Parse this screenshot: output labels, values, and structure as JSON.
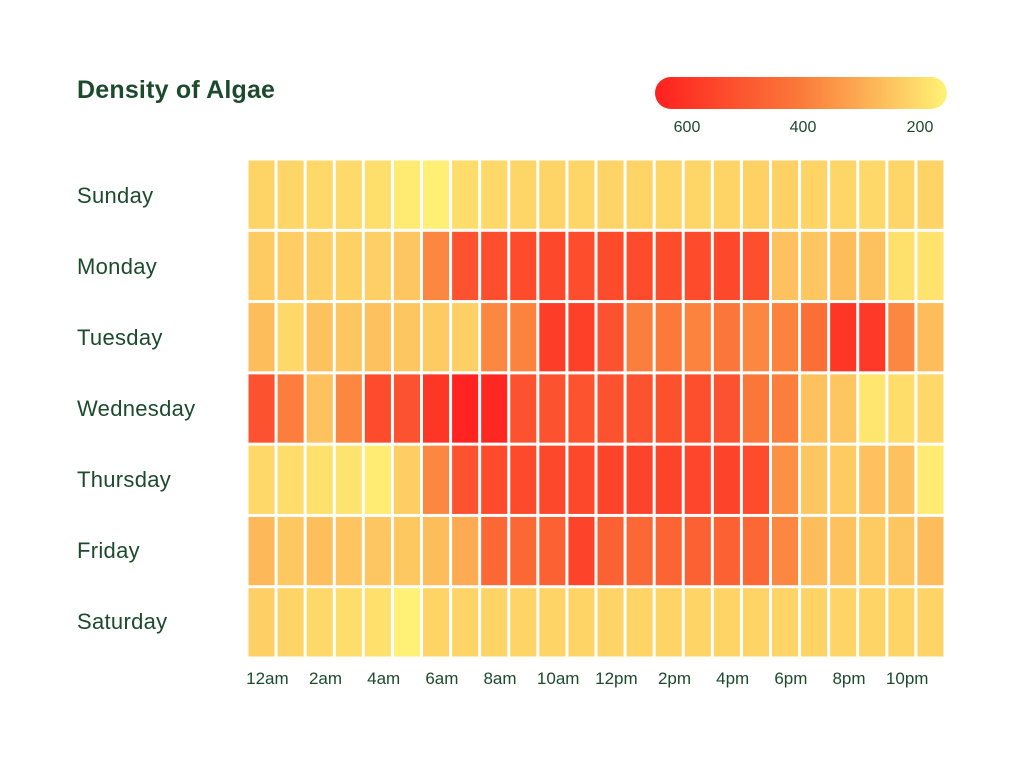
{
  "chart_data": {
    "type": "heatmap",
    "title": "Density of Algae",
    "rows": [
      "Sunday",
      "Monday",
      "Tuesday",
      "Wednesday",
      "Thursday",
      "Friday",
      "Saturday"
    ],
    "columns": [
      "12am",
      "1am",
      "2am",
      "3am",
      "4am",
      "5am",
      "6am",
      "7am",
      "8am",
      "9am",
      "10am",
      "11am",
      "12pm",
      "1pm",
      "2pm",
      "3pm",
      "4pm",
      "5pm",
      "6pm",
      "7pm",
      "8pm",
      "9pm",
      "10pm",
      "11pm"
    ],
    "x_tick_labels": [
      "12am",
      "2am",
      "4am",
      "6am",
      "8am",
      "10am",
      "12pm",
      "2pm",
      "4pm",
      "6pm",
      "8pm",
      "10pm"
    ],
    "values": [
      [
        250,
        245,
        240,
        235,
        225,
        200,
        190,
        230,
        240,
        245,
        250,
        245,
        250,
        250,
        245,
        245,
        250,
        255,
        255,
        250,
        245,
        240,
        245,
        250
      ],
      [
        270,
        265,
        260,
        255,
        260,
        280,
        420,
        560,
        570,
        580,
        590,
        575,
        580,
        580,
        575,
        580,
        590,
        570,
        290,
        280,
        300,
        290,
        220,
        215
      ],
      [
        300,
        240,
        290,
        280,
        290,
        280,
        270,
        260,
        420,
        430,
        620,
        610,
        560,
        440,
        450,
        430,
        460,
        420,
        430,
        480,
        640,
        630,
        420,
        300
      ],
      [
        560,
        440,
        290,
        420,
        580,
        560,
        640,
        690,
        680,
        560,
        560,
        555,
        560,
        560,
        565,
        570,
        560,
        460,
        440,
        290,
        280,
        210,
        230,
        240
      ],
      [
        240,
        230,
        220,
        215,
        195,
        265,
        420,
        560,
        580,
        585,
        590,
        590,
        600,
        600,
        600,
        595,
        600,
        580,
        400,
        280,
        270,
        290,
        290,
        200
      ],
      [
        310,
        275,
        295,
        285,
        280,
        275,
        300,
        340,
        500,
        500,
        520,
        600,
        520,
        500,
        510,
        520,
        520,
        500,
        420,
        300,
        290,
        270,
        280,
        300
      ],
      [
        260,
        250,
        240,
        230,
        220,
        185,
        250,
        250,
        250,
        250,
        250,
        250,
        250,
        250,
        250,
        250,
        250,
        250,
        250,
        250,
        250,
        250,
        250,
        250
      ]
    ],
    "colorbar": {
      "ticks": [
        600,
        400,
        200
      ],
      "tick_labels": [
        "600",
        "400",
        "200"
      ],
      "orientation": "horizontal",
      "placement": "top-right",
      "direction": "high values on the left",
      "colors": {
        "high": "#ff2020",
        "mid": "#fb7a3a",
        "low": "#fff376"
      }
    },
    "cell_border_color": "#ffffff",
    "text_color": "#1c4a2c"
  }
}
